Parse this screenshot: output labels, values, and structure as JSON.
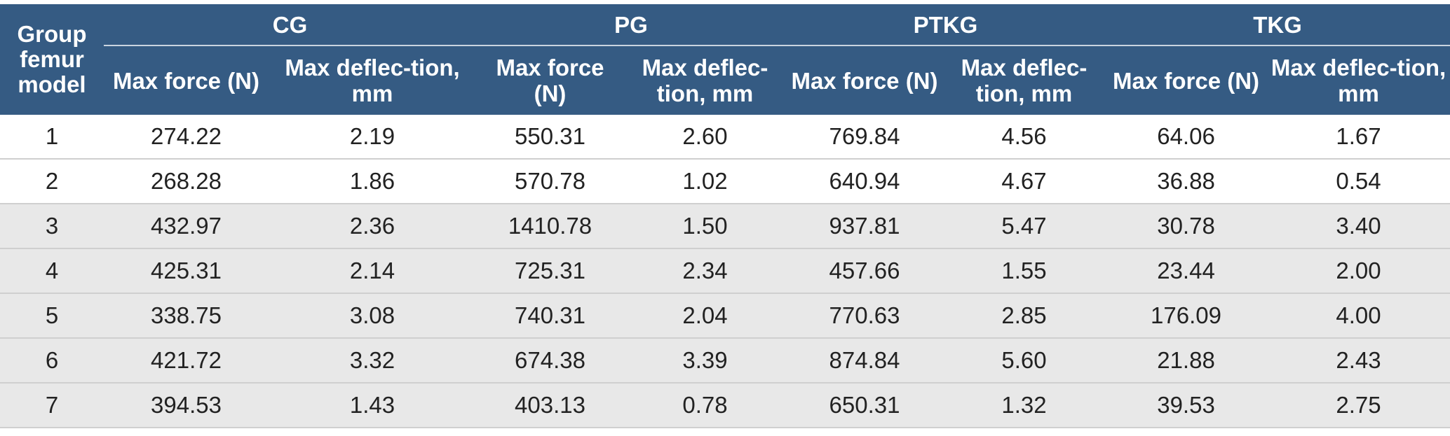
{
  "header": {
    "group_label": "Group femur model",
    "groups": [
      "CG",
      "PG",
      "PTKG",
      "TKG"
    ],
    "subheaders": [
      "Max force (N)",
      "Max deflec-tion, mm",
      "Max force (N)",
      "Max deflec-tion, mm",
      "Max force (N)",
      "Max deflec-tion, mm",
      "Max force (N)",
      "Max deflec-tion, mm"
    ]
  },
  "table": {
    "rows": [
      [
        "1",
        "274.22",
        "2.19",
        "550.31",
        "2.60",
        "769.84",
        "4.56",
        "64.06",
        "1.67"
      ],
      [
        "2",
        "268.28",
        "1.86",
        "570.78",
        "1.02",
        "640.94",
        "4.67",
        "36.88",
        "0.54"
      ],
      [
        "3",
        "432.97",
        "2.36",
        "1410.78",
        "1.50",
        "937.81",
        "5.47",
        "30.78",
        "3.40"
      ],
      [
        "4",
        "425.31",
        "2.14",
        "725.31",
        "2.34",
        "457.66",
        "1.55",
        "23.44",
        "2.00"
      ],
      [
        "5",
        "338.75",
        "3.08",
        "740.31",
        "2.04",
        "770.63",
        "2.85",
        "176.09",
        "4.00"
      ],
      [
        "6",
        "421.72",
        "3.32",
        "674.38",
        "3.39",
        "874.84",
        "5.60",
        "21.88",
        "2.43"
      ],
      [
        "7",
        "394.53",
        "1.43",
        "403.13",
        "0.78",
        "650.31",
        "1.32",
        "39.53",
        "2.75"
      ]
    ]
  }
}
